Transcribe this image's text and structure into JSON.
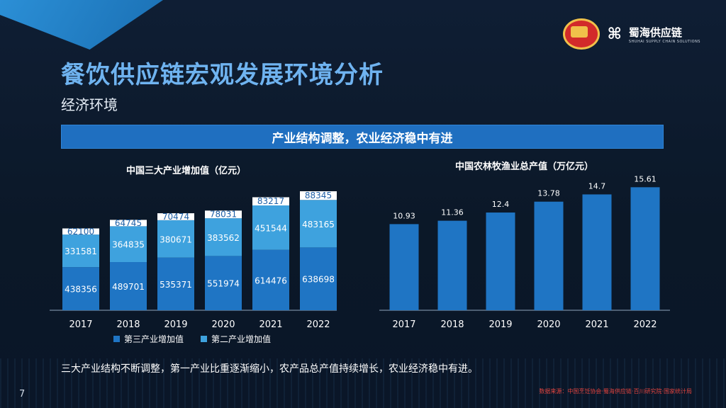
{
  "header": {
    "title": "餐饮供应链宏观发展环境分析",
    "subtitle": "经济环境",
    "banner": "产业结构调整，农业经济稳中有进",
    "logo_text": "蜀海供应链",
    "logo_sub": "SHUHAI SUPPLY CHAIN SOLUTIONS"
  },
  "colors": {
    "tertiary": "#1f75c4",
    "secondary": "#3ea2de",
    "agri": "#1f75c4",
    "accent_title": "#6fb3f0"
  },
  "chart_data": [
    {
      "type": "bar",
      "stacked": true,
      "title": "中国三大产业增加值（亿元）",
      "categories": [
        "2017",
        "2018",
        "2019",
        "2020",
        "2021",
        "2022"
      ],
      "series": [
        {
          "name": "第三产业增加值",
          "values": [
            438356,
            489701,
            535371,
            551974,
            614476,
            638698
          ]
        },
        {
          "name": "第二产业增加值",
          "values": [
            331581,
            364835,
            380671,
            383562,
            451544,
            483165
          ]
        },
        {
          "name": "",
          "values": [
            62100,
            64745,
            70474,
            78031,
            83217,
            88345
          ]
        }
      ],
      "legend": "bottom"
    },
    {
      "type": "bar",
      "title": "中国农林牧渔业总产值（万亿元）",
      "categories": [
        "2017",
        "2018",
        "2019",
        "2020",
        "2021",
        "2022"
      ],
      "values": [
        10.93,
        11.36,
        12.4,
        13.78,
        14.7,
        15.61
      ]
    }
  ],
  "footer": {
    "note": "三大产业结构不断调整，第一产业比重逐渐缩小，农产品总产值持续增长，农业经济稳中有进。",
    "page": "7",
    "source": "数据来源：中国烹饪协会·蜀海供应链·百川研究院·国家统计局"
  }
}
